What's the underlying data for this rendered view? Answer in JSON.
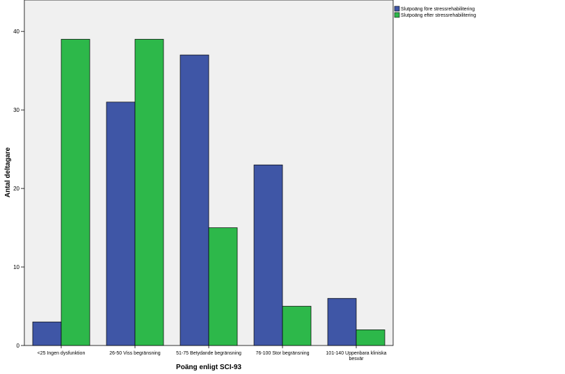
{
  "chart_data": {
    "type": "bar",
    "categories": [
      "<25 Ingen dysfunktion",
      "26-50 Viss begränsning",
      "51-75 Betydande begränsning",
      "76-100 Stor begränsning",
      "101-140 Uppenbara kliniska besvär"
    ],
    "category_label_lines": [
      [
        "<25 Ingen dysfunktion"
      ],
      [
        "26-50 Viss begränsning"
      ],
      [
        "51-75 Betydande begränsning"
      ],
      [
        "76-100 Stor begränsning"
      ],
      [
        "101-140 Uppenbara kliniska",
        "besvär"
      ]
    ],
    "series": [
      {
        "name": "Slutpoäng före stressrehabilitering",
        "values": [
          3,
          31,
          37,
          23,
          6
        ],
        "color": "#3f56a6"
      },
      {
        "name": "Slutpoäng efter stressrehabilitering",
        "values": [
          39,
          39,
          15,
          5,
          2
        ],
        "color": "#2db84a"
      }
    ],
    "xlabel": "Poäng enligt SCI-93",
    "ylabel": "Antal deltagare",
    "ylim": [
      0,
      44
    ],
    "yticks": [
      0,
      10,
      20,
      30,
      40
    ],
    "grid": false,
    "legend_position": "top-right outside",
    "plot_background": "#f0f0f0"
  }
}
